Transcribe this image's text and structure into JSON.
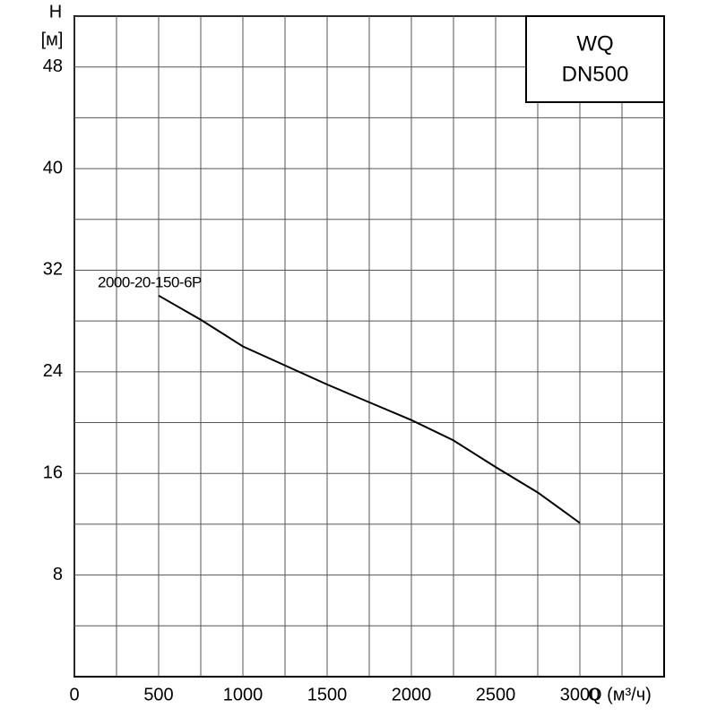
{
  "chart_data": {
    "type": "line",
    "title_lines": [
      "WQ",
      "DN500"
    ],
    "y_label_lines": [
      "H",
      "[м]"
    ],
    "x_label": "Q (м³/ч)",
    "x": [
      500,
      750,
      1000,
      1250,
      1500,
      1750,
      2000,
      2250,
      2500,
      2750,
      3000
    ],
    "series": [
      {
        "name": "2000-20-150-6P",
        "color": "#000000",
        "values": [
          30.0,
          28.1,
          26.0,
          24.5,
          23.0,
          21.6,
          20.2,
          18.6,
          16.5,
          14.5,
          12.1
        ]
      }
    ],
    "xlim": [
      0,
      3500
    ],
    "ylim": [
      0,
      52
    ],
    "xticks": [
      0,
      500,
      1000,
      1500,
      2000,
      2500,
      3000
    ],
    "yticks": [
      8,
      16,
      24,
      32,
      40,
      48
    ],
    "minor_xticks": [
      250,
      750,
      1250,
      1750,
      2250,
      2750,
      3250
    ],
    "minor_yticks": [
      4,
      12,
      20,
      28,
      36,
      44,
      52
    ],
    "grid": true
  }
}
